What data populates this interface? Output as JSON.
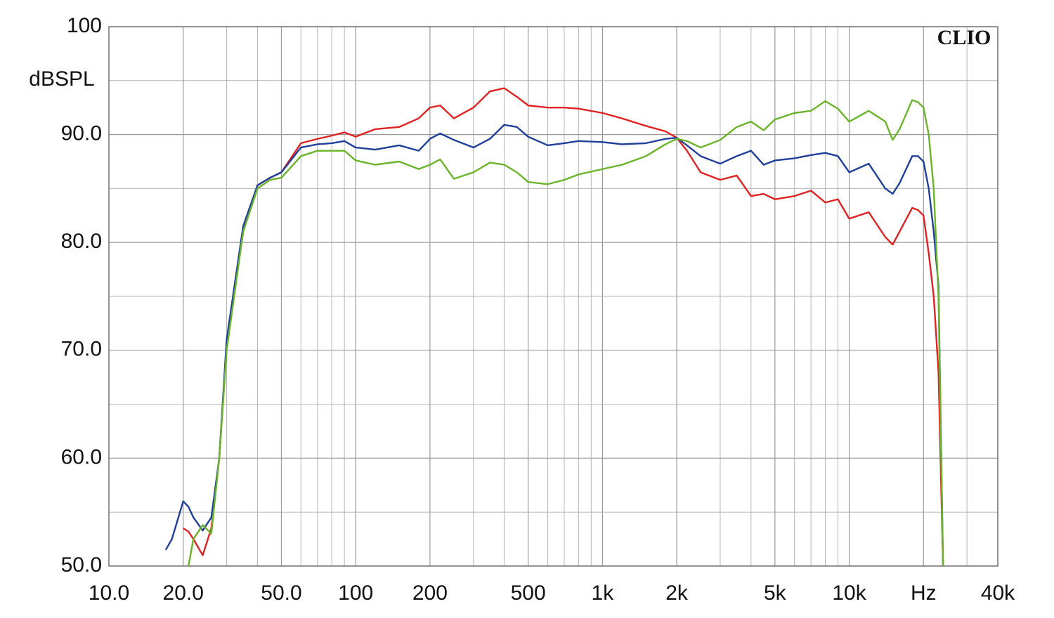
{
  "chart_data": {
    "type": "line",
    "ylabel": "dBSPL",
    "annotation": "CLIO",
    "xscale": "log",
    "xlim": [
      10,
      40000
    ],
    "ylim": [
      50,
      100
    ],
    "xticks": [
      {
        "value": 10,
        "label": "10.0"
      },
      {
        "value": 20,
        "label": "20.0"
      },
      {
        "value": 50,
        "label": "50.0"
      },
      100,
      200,
      500,
      {
        "value": 1000,
        "label": "1k"
      },
      {
        "value": 2000,
        "label": "2k"
      },
      {
        "value": 5000,
        "label": "5k"
      },
      {
        "value": 10000,
        "label": "10k"
      },
      {
        "value": 20000,
        "label": "Hz"
      },
      {
        "value": 40000,
        "label": "40k"
      }
    ],
    "xminor": [
      30,
      40,
      60,
      70,
      80,
      90,
      300,
      400,
      600,
      700,
      800,
      900,
      3000,
      4000,
      6000,
      7000,
      8000,
      9000,
      30000
    ],
    "yticks": [
      {
        "value": 50,
        "label": "50.0"
      },
      {
        "value": 60,
        "label": "60.0"
      },
      {
        "value": 70,
        "label": "70.0"
      },
      {
        "value": 80,
        "label": "80.0"
      },
      {
        "value": 90,
        "label": "90.0"
      },
      100
    ],
    "yminor": [
      55,
      65,
      75,
      85,
      95
    ],
    "grid": true,
    "x": [
      17,
      18,
      20,
      21,
      22,
      24,
      26,
      28,
      30,
      35,
      40,
      45,
      50,
      60,
      70,
      80,
      90,
      100,
      120,
      150,
      180,
      200,
      220,
      250,
      300,
      350,
      400,
      450,
      500,
      600,
      700,
      800,
      1000,
      1200,
      1500,
      1800,
      2000,
      2200,
      2500,
      3000,
      3500,
      4000,
      4500,
      5000,
      6000,
      7000,
      8000,
      9000,
      10000,
      12000,
      14000,
      15000,
      16000,
      18000,
      19000,
      20000,
      21000,
      22000,
      23000,
      24000
    ],
    "series": [
      {
        "color": "#e02222",
        "values": [
          null,
          null,
          53.5,
          53.2,
          52.5,
          51,
          53.5,
          60,
          70.5,
          81,
          85.3,
          86,
          86.5,
          89.2,
          89.6,
          89.9,
          90.2,
          89.8,
          90.5,
          90.7,
          91.5,
          92.5,
          92.7,
          91.5,
          92.5,
          94,
          94.3,
          93.5,
          92.7,
          92.5,
          92.5,
          92.4,
          92,
          91.5,
          90.8,
          90.3,
          89.7,
          88.5,
          86.5,
          85.8,
          86.2,
          84.3,
          84.5,
          84,
          84.3,
          84.8,
          83.7,
          84,
          82.2,
          82.8,
          80.5,
          79.8,
          81,
          83.2,
          83,
          82.5,
          79,
          75,
          68,
          50
        ]
      },
      {
        "color": "#1f3f9a",
        "values": [
          51.5,
          52.5,
          56,
          55.5,
          54.5,
          53.3,
          54.5,
          60,
          71,
          81.5,
          85.3,
          86,
          86.5,
          88.8,
          89.1,
          89.2,
          89.4,
          88.8,
          88.6,
          89,
          88.5,
          89.6,
          90.1,
          89.5,
          88.8,
          89.6,
          90.9,
          90.7,
          89.8,
          89,
          89.2,
          89.4,
          89.3,
          89.1,
          89.2,
          89.6,
          89.7,
          89,
          88,
          87.3,
          88,
          88.5,
          87.2,
          87.6,
          87.8,
          88.1,
          88.3,
          88,
          86.5,
          87.3,
          85,
          84.5,
          85.5,
          88,
          88,
          87.5,
          85,
          81,
          76,
          50
        ]
      },
      {
        "color": "#6ab42a",
        "values": [
          null,
          null,
          null,
          50,
          52.5,
          53.8,
          53,
          60,
          70,
          81,
          85,
          85.8,
          86,
          88,
          88.5,
          88.5,
          88.5,
          87.6,
          87.2,
          87.5,
          86.8,
          87.2,
          87.7,
          85.9,
          86.5,
          87.4,
          87.2,
          86.5,
          85.6,
          85.4,
          85.8,
          86.3,
          86.8,
          87.2,
          88,
          89.1,
          89.6,
          89.4,
          88.8,
          89.5,
          90.7,
          91.2,
          90.4,
          91.4,
          92,
          92.2,
          93.1,
          92.4,
          91.2,
          92.2,
          91.2,
          89.5,
          90.5,
          93.2,
          93,
          92.5,
          90,
          85,
          75,
          50
        ]
      }
    ]
  }
}
